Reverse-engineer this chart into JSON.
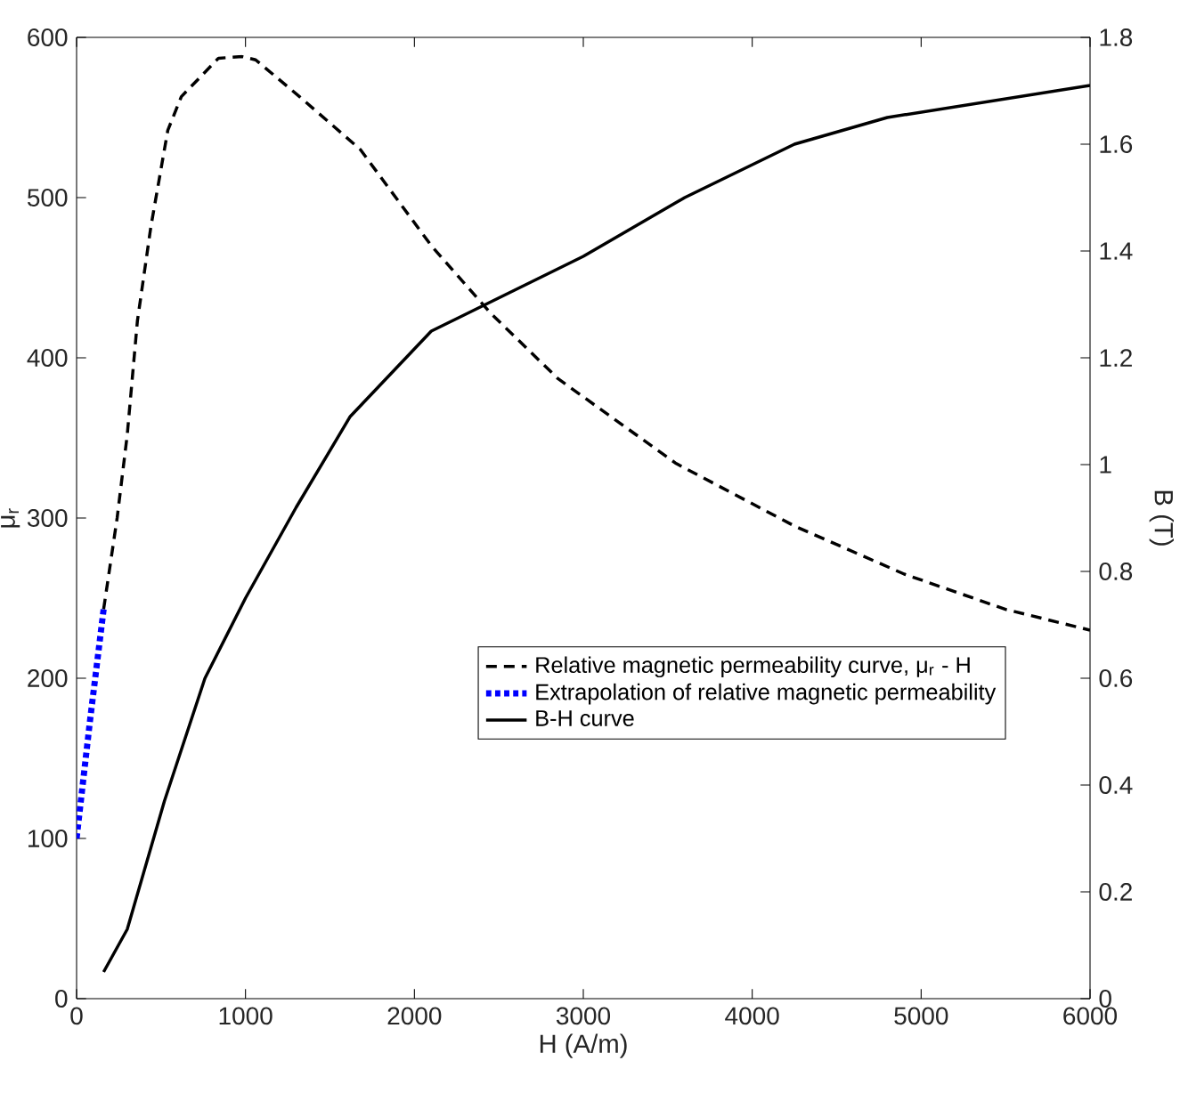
{
  "chart_data": {
    "type": "line",
    "xlabel": "H (A/m)",
    "ylabel": "μ$_{r}$",
    "y2label": "B (T)",
    "xlim": [
      0,
      6000
    ],
    "xticks": [
      0,
      1000,
      2000,
      3000,
      4000,
      5000,
      6000
    ],
    "ylim": [
      0,
      600
    ],
    "yticks": [
      0,
      100,
      200,
      300,
      400,
      500,
      600
    ],
    "y2lim": [
      0,
      1.8
    ],
    "y2ticks": [
      0,
      0.2,
      0.4,
      0.6,
      0.8,
      1,
      1.2,
      1.4,
      1.6,
      1.8
    ],
    "legend": "right",
    "marker": "none",
    "series": [
      {
        "name": "Relative magnetic permeability curve, μ$_{r}$ - H",
        "color": "#000000",
        "line_style": "dashed",
        "x": [
          160,
          240,
          300,
          360,
          440,
          540,
          620,
          840,
          980,
          1060,
          1320,
          1680,
          2100,
          2450,
          2850,
          3550,
          4250,
          4900,
          5500,
          6000
        ],
        "values": [
          243,
          300,
          352,
          423,
          482,
          542,
          563,
          587,
          588,
          586,
          563,
          530,
          470,
          428,
          387,
          334,
          295,
          265,
          243,
          230
        ]
      },
      {
        "name": "Extrapolation of relative magnetic permeability",
        "color": "#0000ff",
        "line_style": "dotted",
        "x": [
          0,
          80,
          160
        ],
        "values": [
          100,
          174,
          243
        ]
      },
      {
        "name": "B-H curve",
        "color": "#000000",
        "line_style": "solid",
        "axis": "y2",
        "x": [
          160,
          300,
          520,
          760,
          1000,
          1300,
          1620,
          2100,
          3000,
          3600,
          4250,
          4800,
          6000
        ],
        "values": [
          0.05,
          0.13,
          0.37,
          0.6,
          0.75,
          0.92,
          1.09,
          1.25,
          1.39,
          1.5,
          1.6,
          1.65,
          1.71
        ]
      }
    ]
  }
}
